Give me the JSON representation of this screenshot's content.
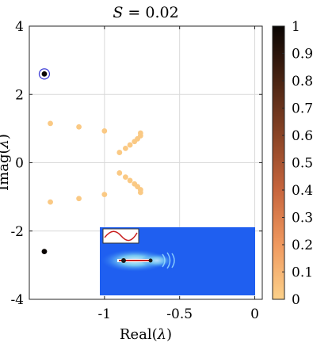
{
  "chart_data": {
    "type": "scatter",
    "title": "S = 0.02",
    "title_parts": {
      "var": "S",
      "rest": " = 0.02"
    },
    "xlabel": "Real(λ)",
    "xlabel_parts": {
      "pre": "Real(",
      "var": "λ",
      "post": ")"
    },
    "ylabel": "Imag(λ)",
    "ylabel_parts": {
      "pre": "Imag(",
      "var": "λ",
      "post": ")"
    },
    "xlim": [
      -1.5,
      0.05
    ],
    "ylim": [
      -4,
      4
    ],
    "xticks": [
      -1,
      -0.5,
      0
    ],
    "xtick_labels": [
      "-1",
      "-0.5",
      "0"
    ],
    "yticks": [
      -4,
      -2,
      0,
      2,
      4
    ],
    "ytick_labels": [
      "-4",
      "-2",
      "0",
      "2",
      "4"
    ],
    "grid": true,
    "colorbar": {
      "min": 0,
      "max": 1,
      "ticks": [
        0,
        0.1,
        0.2,
        0.3,
        0.4,
        0.5,
        0.6,
        0.7,
        0.8,
        0.9,
        1
      ],
      "tick_labels": [
        "0",
        "0.1",
        "0.2",
        "0.3",
        "0.4",
        "0.5",
        "0.6",
        "0.7",
        "0.8",
        "0.9",
        "1"
      ],
      "colors": [
        "#fcd18a",
        "#f0995f",
        "#c7653d",
        "#8a4426",
        "#4a2413",
        "#0a0503"
      ]
    },
    "points": [
      {
        "x": -1.4,
        "y": 2.6,
        "c": 1.0,
        "highlighted": true
      },
      {
        "x": -1.4,
        "y": -2.6,
        "c": 1.0
      },
      {
        "x": -1.36,
        "y": 1.15,
        "c": 0.03
      },
      {
        "x": -1.36,
        "y": -1.15,
        "c": 0.03
      },
      {
        "x": -1.17,
        "y": 1.05,
        "c": 0.03
      },
      {
        "x": -1.17,
        "y": -1.05,
        "c": 0.03
      },
      {
        "x": -1.0,
        "y": 0.93,
        "c": 0.03
      },
      {
        "x": -1.0,
        "y": -0.93,
        "c": 0.03
      },
      {
        "x": -0.9,
        "y": 0.3,
        "c": 0.03
      },
      {
        "x": -0.9,
        "y": -0.3,
        "c": 0.03
      },
      {
        "x": -0.86,
        "y": 0.42,
        "c": 0.03
      },
      {
        "x": -0.86,
        "y": -0.42,
        "c": 0.03
      },
      {
        "x": -0.83,
        "y": 0.52,
        "c": 0.03
      },
      {
        "x": -0.83,
        "y": -0.52,
        "c": 0.03
      },
      {
        "x": -0.8,
        "y": 0.62,
        "c": 0.03
      },
      {
        "x": -0.8,
        "y": -0.62,
        "c": 0.03
      },
      {
        "x": -0.78,
        "y": 0.7,
        "c": 0.03
      },
      {
        "x": -0.78,
        "y": -0.7,
        "c": 0.03
      },
      {
        "x": -0.76,
        "y": 0.79,
        "c": 0.03
      },
      {
        "x": -0.76,
        "y": -0.79,
        "c": 0.03
      },
      {
        "x": -0.76,
        "y": 0.87,
        "c": 0.03
      },
      {
        "x": -0.76,
        "y": -0.87,
        "c": 0.03
      }
    ],
    "inset": {
      "description_colors": {
        "background": "#1f5ff0",
        "line": "#c81e1e",
        "box": "#ffffff"
      },
      "x_range": [
        -1.0,
        0.02
      ],
      "y_range": [
        -4.0,
        -1.85
      ]
    }
  }
}
